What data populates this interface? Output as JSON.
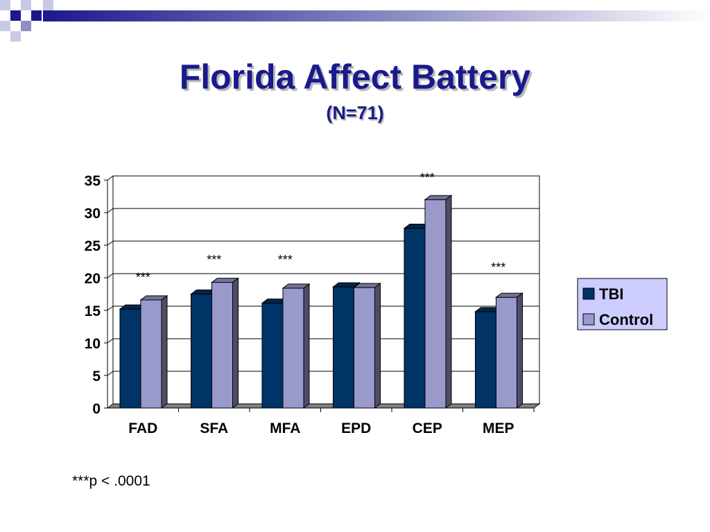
{
  "slide": {
    "title": "Florida Affect Battery",
    "subtitle": "(N=71)",
    "footnote": "***p < .0001"
  },
  "colors": {
    "title": "#1a1a8c",
    "tbi": "#003366",
    "control": "#9999cc",
    "legend_bg": "#ccccff"
  },
  "chart_data": {
    "type": "bar",
    "style": "3d-clustered",
    "categories": [
      "FAD",
      "SFA",
      "MFA",
      "EPD",
      "CEP",
      "MEP"
    ],
    "series": [
      {
        "name": "TBI",
        "values": [
          15.2,
          17.5,
          16.1,
          18.6,
          27.6,
          14.8
        ]
      },
      {
        "name": "Control",
        "values": [
          16.6,
          19.3,
          18.4,
          18.5,
          32.0,
          17.0
        ]
      }
    ],
    "yticks": [
      "0",
      "5",
      "10",
      "15",
      "20",
      "25",
      "30",
      "35"
    ],
    "ylim": [
      0,
      35
    ],
    "grid": true,
    "legend_position": "right",
    "annotations": [
      {
        "category": "FAD",
        "text": "***",
        "value": 20.5
      },
      {
        "category": "SFA",
        "text": "***",
        "value": 23.2
      },
      {
        "category": "MFA",
        "text": "***",
        "value": 23.2
      },
      {
        "category": "CEP",
        "text": "***",
        "value": 35.8
      },
      {
        "category": "MEP",
        "text": "***",
        "value": 22.0
      }
    ]
  }
}
